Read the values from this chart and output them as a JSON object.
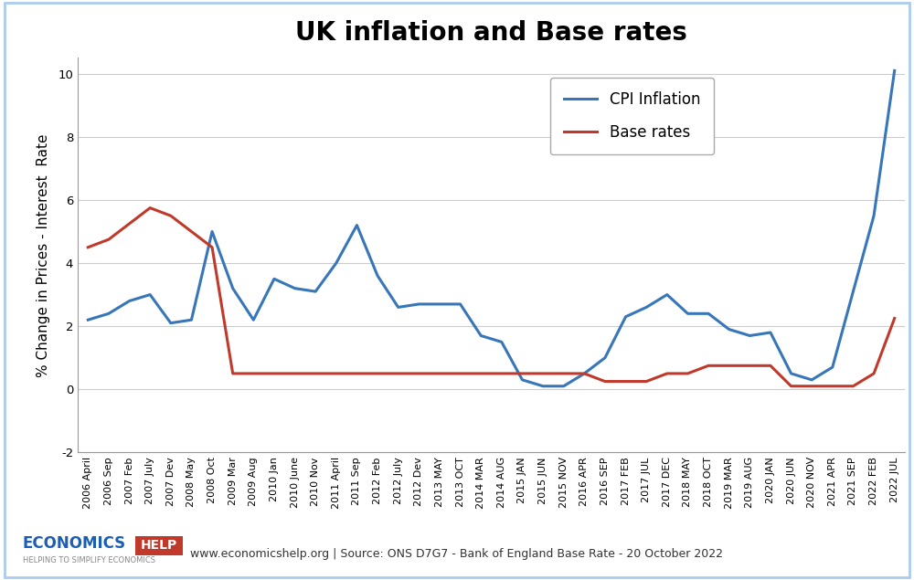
{
  "title": "UK inflation and Base rates",
  "ylabel": "% Change in Prices - Interest  Rate",
  "source_text": "www.economicshelp.org | Source: ONS D7G7 - Bank of England Base Rate - 20 October 2022",
  "ylim": [
    -2,
    10.5
  ],
  "yticks": [
    -2,
    0,
    2,
    4,
    6,
    8,
    10
  ],
  "cpi_color": "#3776b8",
  "base_color": "#c0392b",
  "legend_labels": [
    "CPI Inflation",
    "Base rates"
  ],
  "x_labels": [
    "2006 April",
    "2006 Sep",
    "2007 Feb",
    "2007 July",
    "2007 Dev",
    "2008 May",
    "2008 Oct",
    "2009 Mar",
    "2009 Aug",
    "2010 Jan",
    "2010 June",
    "2010 Nov",
    "2011 April",
    "2011 Sep",
    "2012 Feb",
    "2012 July",
    "2012 Dev",
    "2013 MAY",
    "2013 OCT",
    "2014 MAR",
    "2014 AUG",
    "2015 JAN",
    "2015 JUN",
    "2015 NOV",
    "2016 APR",
    "2016 SEP",
    "2017 FEB",
    "2017 JUL",
    "2017 DEC",
    "2018 MAY",
    "2018 OCT",
    "2019 MAR",
    "2019 AUG",
    "2020 JAN",
    "2020 JUN",
    "2020 NOV",
    "2021 APR",
    "2021 SEP",
    "2022 FEB",
    "2022 JUL"
  ],
  "cpi_values": [
    2.2,
    2.4,
    2.8,
    3.0,
    2.1,
    2.2,
    5.0,
    3.2,
    2.2,
    3.5,
    3.2,
    3.1,
    4.0,
    5.2,
    3.6,
    2.6,
    2.7,
    2.7,
    2.7,
    1.7,
    1.5,
    0.3,
    0.1,
    0.1,
    0.5,
    1.0,
    2.3,
    2.6,
    3.0,
    2.4,
    2.4,
    1.9,
    1.7,
    1.8,
    0.5,
    0.3,
    0.7,
    3.1,
    5.5,
    10.1
  ],
  "base_values": [
    4.5,
    4.75,
    5.25,
    5.75,
    5.5,
    5.0,
    4.5,
    0.5,
    0.5,
    0.5,
    0.5,
    0.5,
    0.5,
    0.5,
    0.5,
    0.5,
    0.5,
    0.5,
    0.5,
    0.5,
    0.5,
    0.5,
    0.5,
    0.5,
    0.5,
    0.25,
    0.25,
    0.25,
    0.5,
    0.5,
    0.75,
    0.75,
    0.75,
    0.75,
    0.1,
    0.1,
    0.1,
    0.1,
    0.5,
    2.25
  ],
  "background_color": "#ffffff",
  "fig_border_color": "#aaccee",
  "grid_color": "#cccccc",
  "title_fontsize": 20,
  "axis_label_fontsize": 11,
  "tick_fontsize": 8.0,
  "legend_fontsize": 12,
  "logo_economics_color": "#1a5fb4",
  "logo_help_color": "#c0392b",
  "logo_sub_color": "#888888"
}
